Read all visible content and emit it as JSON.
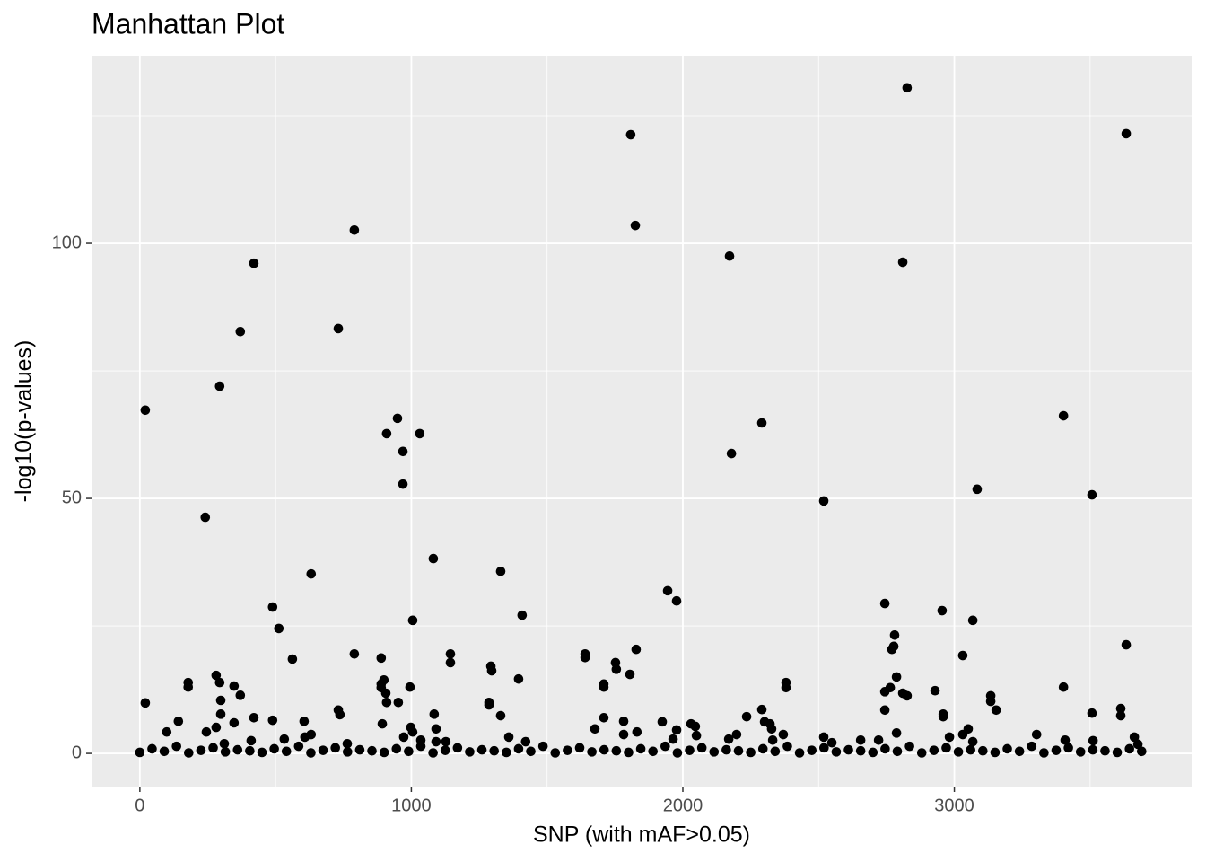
{
  "chart_data": {
    "type": "scatter",
    "title": "Manhattan Plot",
    "x_label": "SNP (with mAF>0.05)",
    "y_label": "-log10(p-values)",
    "color": "#000000",
    "grid": true,
    "xlim": [
      -178,
      3874
    ],
    "ylim": [
      -6.5,
      136.8
    ],
    "xticks": [
      0,
      1000,
      2000,
      3000
    ],
    "yticks": [
      0,
      50,
      100
    ],
    "x": [
      20,
      20,
      99,
      142,
      178,
      178,
      241,
      245,
      281,
      294,
      294,
      298,
      298,
      281,
      311,
      347,
      370,
      370,
      347,
      420,
      420,
      410,
      489,
      489,
      512,
      532,
      562,
      605,
      631,
      631,
      608,
      731,
      731,
      737,
      764,
      790,
      790,
      889,
      889,
      889,
      899,
      906,
      909,
      909,
      893,
      952,
      949,
      969,
      969,
      972,
      995,
      998,
      1005,
      1005,
      1031,
      1035,
      1081,
      1084,
      1091,
      1091,
      1144,
      1144,
      1127,
      1286,
      1286,
      1293,
      1296,
      1329,
      1329,
      1359,
      1395,
      1408,
      1421,
      1640,
      1640,
      1676,
      1709,
      1709,
      1709,
      1752,
      1755,
      1782,
      1782,
      1808,
      1805,
      1825,
      1828,
      1831,
      1924,
      1944,
      1977,
      1977,
      1964,
      2030,
      2046,
      2050,
      2169,
      2172,
      2179,
      2198,
      2235,
      2291,
      2291,
      2301,
      2321,
      2327,
      2331,
      2380,
      2380,
      2370,
      2519,
      2519,
      2549,
      2655,
      2721,
      2744,
      2744,
      2744,
      2764,
      2770,
      2780,
      2777,
      2787,
      2787,
      2810,
      2810,
      2826,
      2826,
      2929,
      2955,
      2959,
      2959,
      2982,
      3031,
      3031,
      3051,
      3068,
      3068,
      3084,
      3134,
      3134,
      3154,
      3303,
      3402,
      3402,
      3408,
      3507,
      3507,
      3511,
      3613,
      3613,
      3633,
      3633,
      3663,
      3676,
      0,
      45,
      90,
      135,
      180,
      225,
      270,
      315,
      360,
      405,
      450,
      495,
      540,
      585,
      630,
      675,
      720,
      765,
      810,
      855,
      900,
      945,
      990,
      1035,
      1080,
      1125,
      1170,
      1215,
      1260,
      1305,
      1350,
      1395,
      1440,
      1485,
      1530,
      1575,
      1620,
      1665,
      1710,
      1755,
      1800,
      1845,
      1890,
      1935,
      1980,
      2025,
      2070,
      2115,
      2160,
      2205,
      2250,
      2295,
      2340,
      2385,
      2430,
      2475,
      2520,
      2565,
      2610,
      2655,
      2700,
      2745,
      2790,
      2835,
      2880,
      2925,
      2970,
      3015,
      3060,
      3105,
      3150,
      3195,
      3240,
      3285,
      3330,
      3375,
      3420,
      3465,
      3510,
      3555,
      3600,
      3645,
      3690
    ],
    "values": [
      67.3,
      9.9,
      4.2,
      6.3,
      13.9,
      13.0,
      46.3,
      4.2,
      15.3,
      72.0,
      13.9,
      10.4,
      7.7,
      5.1,
      1.9,
      13.2,
      82.7,
      11.4,
      6.0,
      96.1,
      7.0,
      2.5,
      28.7,
      6.5,
      24.5,
      2.8,
      18.5,
      6.3,
      35.2,
      3.7,
      3.2,
      83.3,
      8.5,
      7.6,
      1.9,
      102.6,
      19.5,
      18.7,
      13.6,
      12.9,
      14.4,
      11.8,
      10.0,
      62.7,
      5.8,
      10.0,
      65.7,
      59.2,
      52.8,
      3.2,
      13.0,
      5.1,
      26.1,
      4.2,
      62.7,
      2.6,
      38.2,
      7.7,
      4.8,
      2.3,
      19.5,
      17.8,
      2.3,
      10.0,
      9.5,
      17.1,
      16.2,
      35.7,
      7.4,
      3.2,
      14.6,
      27.1,
      2.3,
      19.5,
      18.8,
      4.8,
      13.6,
      13.0,
      7.0,
      17.8,
      16.5,
      6.3,
      3.7,
      121.3,
      15.5,
      103.5,
      20.4,
      4.2,
      6.2,
      31.9,
      29.9,
      4.6,
      2.8,
      5.8,
      5.3,
      3.5,
      2.8,
      97.5,
      58.8,
      3.7,
      7.2,
      64.8,
      8.6,
      6.2,
      5.8,
      4.8,
      2.6,
      13.9,
      12.9,
      3.7,
      49.5,
      3.2,
      2.1,
      2.6,
      2.6,
      29.4,
      12.1,
      8.5,
      12.9,
      20.4,
      23.2,
      21.0,
      15.0,
      4.0,
      96.3,
      11.8,
      130.5,
      11.3,
      12.3,
      28.0,
      7.7,
      7.2,
      3.2,
      19.2,
      3.7,
      4.8,
      26.1,
      2.3,
      51.8,
      11.3,
      10.2,
      8.5,
      3.7,
      66.2,
      13.0,
      2.6,
      50.7,
      7.9,
      2.5,
      8.8,
      7.4,
      121.5,
      21.3,
      3.2,
      1.8,
      0.2,
      0.9,
      0.4,
      1.4,
      0.1,
      0.6,
      1.1,
      0.3,
      0.7,
      0.5,
      0.2,
      0.9,
      0.4,
      1.4,
      0.1,
      0.6,
      1.1,
      0.3,
      0.7,
      0.5,
      0.2,
      0.9,
      0.4,
      1.4,
      0.1,
      0.6,
      1.1,
      0.3,
      0.7,
      0.5,
      0.2,
      0.9,
      0.4,
      1.4,
      0.1,
      0.6,
      1.1,
      0.3,
      0.7,
      0.5,
      0.2,
      0.9,
      0.4,
      1.4,
      0.1,
      0.6,
      1.1,
      0.3,
      0.7,
      0.5,
      0.2,
      0.9,
      0.4,
      1.4,
      0.1,
      0.6,
      1.1,
      0.3,
      0.7,
      0.5,
      0.2,
      0.9,
      0.4,
      1.4,
      0.1,
      0.6,
      1.1,
      0.3,
      0.7,
      0.5,
      0.2,
      0.9,
      0.4,
      1.4,
      0.1,
      0.6,
      1.1,
      0.3,
      0.7,
      0.5,
      0.2,
      0.9,
      0.4
    ]
  }
}
